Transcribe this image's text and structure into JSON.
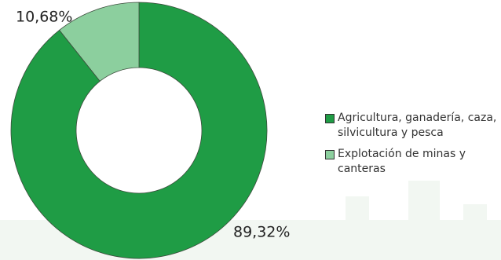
{
  "chart_data": {
    "type": "donut",
    "series": [
      {
        "name": "Agricultura, ganadería, caza, silvicultura y pesca",
        "color": "#1f9c45"
      },
      {
        "name": "Explotación de minas y canteras",
        "color": "#8ccf9e"
      }
    ],
    "values": [
      89.32,
      10.68
    ],
    "value_labels": [
      "89,32%",
      "10,68%"
    ],
    "legend": "right"
  }
}
